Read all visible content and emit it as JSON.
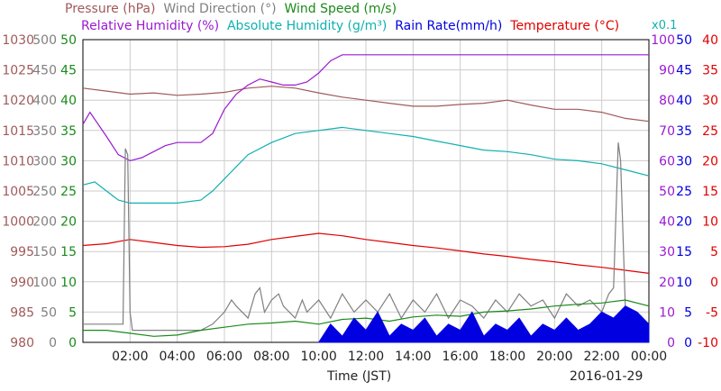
{
  "chart_data": {
    "type": "line",
    "date_label": "2016-01-29",
    "xlabel": "Time (JST)",
    "x_ticks": [
      "02:00",
      "04:00",
      "06:00",
      "08:00",
      "10:00",
      "12:00",
      "14:00",
      "16:00",
      "18:00",
      "20:00",
      "22:00",
      "00:00"
    ],
    "x_range_hours": [
      0,
      24
    ],
    "axes": [
      {
        "name": "Pressure (hPa)",
        "color": "#a05a5a",
        "range": [
          980,
          1030
        ],
        "ticks": [
          "980",
          "985",
          "990",
          "995",
          "1000",
          "1005",
          "1010",
          "1015",
          "1020",
          "1025",
          "1030"
        ]
      },
      {
        "name": "Wind Direction (°)",
        "color": "#808080",
        "range": [
          0,
          500
        ],
        "ticks": [
          "0",
          "50",
          "100",
          "150",
          "200",
          "250",
          "300",
          "350",
          "400",
          "450",
          "500"
        ]
      },
      {
        "name": "Wind Speed (m/s)",
        "color": "#1a8a1a",
        "range": [
          0,
          50
        ],
        "ticks": [
          "0",
          "5",
          "10",
          "15",
          "20",
          "25",
          "30",
          "35",
          "40",
          "45",
          "50"
        ]
      },
      {
        "name": "Relative Humidity (%)",
        "color": "#9a1ad0",
        "range": [
          0,
          100
        ],
        "ticks": [
          "0",
          "10",
          "20",
          "30",
          "40",
          "50",
          "60",
          "70",
          "80",
          "90",
          "100"
        ]
      },
      {
        "name": "Absolute Humidity (g/m³) x0.1",
        "color": "#10b0b0",
        "range": [
          0,
          10
        ],
        "ticks": []
      },
      {
        "name": "Rain Rate(mm/h)",
        "color": "#0000e0",
        "range": [
          0,
          50
        ],
        "ticks": [
          "0",
          "5",
          "10",
          "15",
          "20",
          "25",
          "30",
          "35",
          "40",
          "45",
          "50"
        ]
      },
      {
        "name": "Temperature (°C)",
        "color": "#e00000",
        "range": [
          -10,
          40
        ],
        "ticks": [
          "-10",
          "-5",
          "0",
          "5",
          "10",
          "15",
          "20",
          "25",
          "30",
          "35",
          "40"
        ]
      }
    ],
    "legend_row1": {
      "pressure": "Pressure (hPa)",
      "wind_direction": "Wind Direction (°)",
      "wind_speed": "Wind Speed (m/s)"
    },
    "legend_row2": {
      "relative_humidity": "Relative Humidity (%)",
      "absolute_humidity": "Absolute Humidity (g/m³)",
      "rain_rate": "Rain Rate(mm/h)",
      "temperature": "Temperature (°C)",
      "abs_scale": "x0.1"
    },
    "series": [
      {
        "key": "pressure",
        "name": "Pressure (hPa)",
        "color": "#a05a5a",
        "x": [
          0,
          1,
          2,
          3,
          4,
          5,
          6,
          7,
          8,
          9,
          10,
          11,
          12,
          13,
          14,
          15,
          16,
          17,
          18,
          19,
          20,
          21,
          22,
          23,
          24
        ],
        "y": [
          1022,
          1021.5,
          1021,
          1021.2,
          1020.8,
          1021,
          1021.3,
          1022,
          1022.3,
          1022,
          1021.2,
          1020.5,
          1020,
          1019.5,
          1019,
          1019,
          1019.3,
          1019.5,
          1020,
          1019.2,
          1018.5,
          1018.5,
          1018,
          1017,
          1016.5
        ]
      },
      {
        "key": "relative_humidity",
        "name": "Relative Humidity (%)",
        "color": "#9a1ad0",
        "x": [
          0,
          0.3,
          1,
          1.5,
          2,
          2.5,
          3,
          3.5,
          4,
          5,
          5.5,
          6,
          6.5,
          7,
          7.5,
          8,
          8.5,
          9,
          9.5,
          10,
          10.5,
          11,
          12,
          14,
          16,
          18,
          20,
          22,
          24
        ],
        "y": [
          72,
          76,
          68,
          62,
          60,
          61,
          63,
          65,
          66,
          66,
          69,
          77,
          82,
          85,
          87,
          86,
          85,
          85,
          86,
          89,
          93,
          95,
          95,
          95,
          95,
          95,
          95,
          95,
          95
        ]
      },
      {
        "key": "absolute_humidity",
        "name": "Absolute Humidity (g/m³) x0.1",
        "color": "#10b0b0",
        "x": [
          0,
          0.5,
          1,
          1.5,
          2,
          3,
          4,
          5,
          5.5,
          6,
          6.5,
          7,
          8,
          9,
          10,
          10.5,
          11,
          12,
          13,
          14,
          15,
          16,
          17,
          18,
          19,
          20,
          21,
          22,
          23,
          24
        ],
        "y": [
          5.2,
          5.3,
          5.0,
          4.7,
          4.6,
          4.6,
          4.6,
          4.7,
          5.0,
          5.4,
          5.8,
          6.2,
          6.6,
          6.9,
          7.0,
          7.05,
          7.1,
          7.0,
          6.9,
          6.8,
          6.65,
          6.5,
          6.35,
          6.3,
          6.2,
          6.05,
          6.0,
          5.9,
          5.7,
          5.5
        ]
      },
      {
        "key": "temperature",
        "name": "Temperature (°C)",
        "color": "#e00000",
        "x": [
          0,
          1,
          2,
          3,
          4,
          5,
          6,
          7,
          8,
          9,
          10,
          11,
          12,
          13,
          14,
          15,
          16,
          17,
          18,
          19,
          20,
          21,
          22,
          23,
          24
        ],
        "y": [
          6,
          6.3,
          7,
          6.5,
          6,
          5.7,
          5.8,
          6.2,
          7,
          7.5,
          8,
          7.6,
          7,
          6.5,
          6,
          5.6,
          5.1,
          4.6,
          4.2,
          3.7,
          3.3,
          2.8,
          2.4,
          1.9,
          1.4
        ]
      },
      {
        "key": "wind_direction",
        "name": "Wind Direction (°)",
        "color": "#808080",
        "x": [
          0,
          1,
          1.7,
          1.8,
          1.9,
          2.0,
          2.1,
          3,
          4,
          5,
          5.5,
          6,
          6.3,
          6.5,
          7,
          7.3,
          7.5,
          7.7,
          8,
          8.3,
          8.5,
          9,
          9.3,
          9.5,
          10,
          10.5,
          11,
          11.5,
          12,
          12.5,
          13,
          13.5,
          14,
          14.5,
          15,
          15.5,
          16,
          16.5,
          17,
          17.5,
          18,
          18.5,
          19,
          19.5,
          20,
          20.5,
          21,
          21.5,
          22,
          22.3,
          22.5,
          22.7,
          22.8,
          23,
          23.5,
          24
        ],
        "y": [
          30,
          30,
          30,
          320,
          310,
          50,
          20,
          20,
          20,
          20,
          30,
          50,
          70,
          60,
          40,
          80,
          90,
          50,
          70,
          80,
          60,
          40,
          70,
          50,
          70,
          40,
          80,
          50,
          70,
          50,
          80,
          40,
          70,
          50,
          80,
          40,
          70,
          60,
          40,
          70,
          50,
          80,
          60,
          70,
          40,
          80,
          60,
          70,
          50,
          80,
          90,
          330,
          300,
          60,
          40,
          30
        ]
      },
      {
        "key": "wind_speed",
        "name": "Wind Speed (m/s)",
        "color": "#1a8a1a",
        "x": [
          0,
          1,
          2,
          3,
          4,
          5,
          6,
          7,
          8,
          9,
          10,
          11,
          12,
          13,
          14,
          15,
          16,
          17,
          18,
          19,
          20,
          21,
          22,
          23,
          24
        ],
        "y": [
          2,
          2,
          1.5,
          1,
          1.2,
          2,
          2.5,
          3,
          3.2,
          3.5,
          3,
          3.8,
          4,
          3.5,
          4.2,
          4.5,
          4.3,
          5,
          5.2,
          5.5,
          6,
          6.3,
          6.5,
          7,
          6
        ]
      },
      {
        "key": "rain_rate",
        "name": "Rain Rate(mm/h)",
        "color": "#0000e0",
        "style": "filled",
        "x": [
          10,
          10.5,
          11,
          11.5,
          12,
          12.5,
          13,
          13.5,
          14,
          14.5,
          15,
          15.5,
          16,
          16.5,
          17,
          17.5,
          18,
          18.5,
          19,
          19.5,
          20,
          20.5,
          21,
          21.5,
          22,
          22.5,
          23,
          23.5,
          24
        ],
        "y": [
          0,
          3,
          1,
          4,
          2,
          5,
          1,
          3,
          2,
          4,
          1,
          3,
          2,
          5,
          1,
          3,
          2,
          4,
          1,
          3,
          2,
          4,
          2,
          3,
          5,
          4,
          6,
          5,
          3
        ]
      }
    ]
  }
}
